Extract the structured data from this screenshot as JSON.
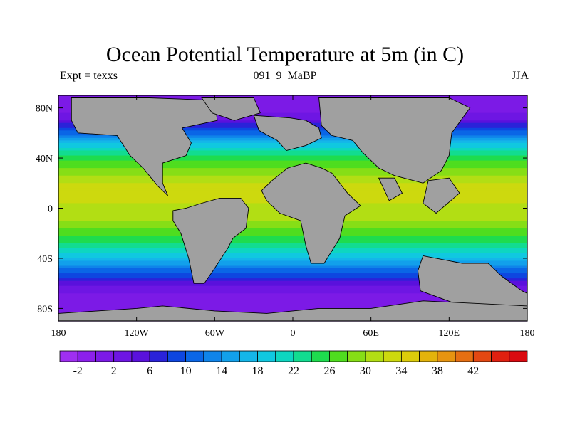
{
  "title": "Ocean Potential Temperature at 5m (in C)",
  "subtitle_left": "Expt = texxs",
  "subtitle_center": "091_9_MaBP",
  "subtitle_right": "JJA",
  "x_ticks": [
    {
      "lon": -180,
      "label": "180"
    },
    {
      "lon": -120,
      "label": "120W"
    },
    {
      "lon": -60,
      "label": "60W"
    },
    {
      "lon": 0,
      "label": "0"
    },
    {
      "lon": 60,
      "label": "60E"
    },
    {
      "lon": 120,
      "label": "120E"
    },
    {
      "lon": 180,
      "label": "180"
    }
  ],
  "y_ticks": [
    {
      "lat": 80,
      "label": "80N"
    },
    {
      "lat": 40,
      "label": "40N"
    },
    {
      "lat": 0,
      "label": "0"
    },
    {
      "lat": -40,
      "label": "40S"
    },
    {
      "lat": -80,
      "label": "80S"
    }
  ],
  "colorbar": {
    "colors": [
      "#9f2ff1",
      "#8c20eb",
      "#7c1ae6",
      "#6e16e3",
      "#5a11dc",
      "#2a22d9",
      "#0e46e0",
      "#0a66e6",
      "#0f84ea",
      "#12a0eb",
      "#14b6e9",
      "#10c8e0",
      "#0ed6c0",
      "#12dc90",
      "#1edc4e",
      "#4fdd1f",
      "#86de16",
      "#b2de14",
      "#cdd90e",
      "#dccc0b",
      "#e3b30b",
      "#e69410",
      "#e56f12",
      "#e34812",
      "#e02010",
      "#da0a10"
    ],
    "labels": [
      "-2",
      "2",
      "6",
      "10",
      "14",
      "18",
      "22",
      "26",
      "30",
      "34",
      "38",
      "42"
    ]
  },
  "chart_data": {
    "type": "heatmap",
    "variable": "Ocean Potential Temperature at 5m",
    "units": "C",
    "experiment": "texxs",
    "period": "091_9_MaBP",
    "season": "JJA",
    "lon_range": [
      -180,
      180
    ],
    "lat_range": [
      -90,
      90
    ],
    "color_levels": [
      -4,
      -2,
      0,
      2,
      4,
      6,
      8,
      10,
      12,
      14,
      16,
      18,
      20,
      22,
      24,
      26,
      28,
      30,
      32,
      34,
      36,
      38,
      40,
      42,
      44
    ],
    "land_color": "#a0a0a0",
    "temperature_by_latitude": [
      {
        "lat": 90,
        "temp": -1.8
      },
      {
        "lat": 80,
        "temp": -1.5
      },
      {
        "lat": 70,
        "temp": 2
      },
      {
        "lat": 60,
        "temp": 9
      },
      {
        "lat": 50,
        "temp": 17
      },
      {
        "lat": 40,
        "temp": 23
      },
      {
        "lat": 30,
        "temp": 27
      },
      {
        "lat": 20,
        "temp": 30
      },
      {
        "lat": 10,
        "temp": 31
      },
      {
        "lat": 0,
        "temp": 29
      },
      {
        "lat": -10,
        "temp": 28
      },
      {
        "lat": -20,
        "temp": 25
      },
      {
        "lat": -30,
        "temp": 21
      },
      {
        "lat": -40,
        "temp": 16
      },
      {
        "lat": -50,
        "temp": 9
      },
      {
        "lat": -60,
        "temp": 3
      },
      {
        "lat": -70,
        "temp": -0.5
      },
      {
        "lat": -80,
        "temp": -1.8
      },
      {
        "lat": -90,
        "temp": -1.8
      }
    ]
  }
}
